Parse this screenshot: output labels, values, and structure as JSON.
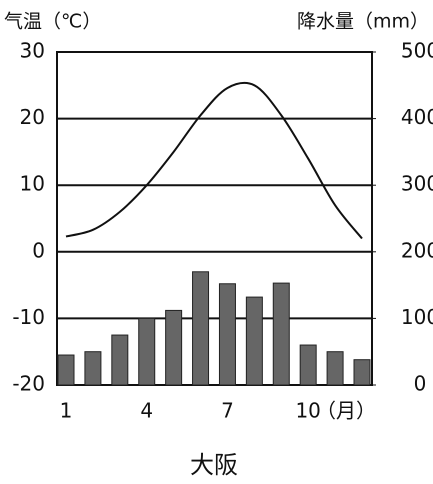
{
  "chart_data": {
    "type": "climate",
    "title": "大阪",
    "y_label": "气温（℃）",
    "y2_label": "降水量（mm）",
    "x_label": "（月）",
    "categories": [
      "1",
      null,
      null,
      "4",
      null,
      null,
      "7",
      null,
      null,
      "10",
      null,
      null
    ],
    "series": [
      {
        "name": "气温",
        "type": "line",
        "axis": "y",
        "color": "#111111",
        "values": [
          2.3,
          3.3,
          6,
          10,
          15,
          20.5,
          24.6,
          25,
          20.5,
          14,
          7,
          2
        ]
      },
      {
        "name": "降水量",
        "type": "bar",
        "axis": "y2",
        "color": "#666666",
        "values": [
          45,
          50,
          75,
          100,
          112,
          170,
          152,
          132,
          153,
          60,
          50,
          38
        ]
      }
    ],
    "ylim": [
      -20,
      30
    ],
    "yticks": [
      -20,
      -10,
      0,
      10,
      20,
      30
    ],
    "y2lim": [
      0,
      500
    ],
    "y2ticks": [
      0,
      100,
      200,
      300,
      400,
      500
    ],
    "grid": true
  }
}
